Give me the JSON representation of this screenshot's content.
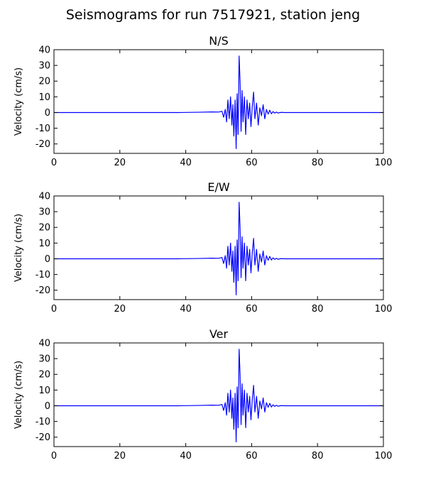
{
  "figure": {
    "title": "Seismograms for run 7517921, station jeng"
  },
  "chart_data": [
    {
      "type": "line",
      "title": "N/S",
      "xlabel": "",
      "ylabel": "Velocity (cm/s)",
      "xlim": [
        0,
        100
      ],
      "ylim": [
        -26,
        40
      ],
      "xticks": [
        0,
        20,
        40,
        60,
        80,
        100
      ],
      "yticks": [
        -20,
        -10,
        0,
        10,
        20,
        30,
        40
      ],
      "grid": false,
      "color": "#0000ff",
      "x": [
        0,
        38,
        44,
        48,
        50,
        51,
        51.5,
        52,
        52.4,
        52.8,
        53.2,
        53.6,
        54,
        54.3,
        54.6,
        55,
        55.3,
        55.6,
        55.9,
        56.2,
        56.5,
        56.8,
        57.1,
        57.4,
        57.8,
        58.2,
        58.6,
        59,
        59.4,
        59.8,
        60.2,
        60.6,
        61,
        61.5,
        62,
        62.5,
        63,
        63.5,
        64,
        64.5,
        65,
        65.5,
        66,
        66.5,
        67,
        67.5,
        68,
        69,
        70,
        75,
        80,
        90,
        100
      ],
      "y": [
        0,
        0,
        0.2,
        0.4,
        0.3,
        0.8,
        -3,
        2,
        -6,
        8,
        -4,
        10,
        -8,
        5,
        -15,
        8,
        -23,
        12,
        -14,
        36,
        20,
        -12,
        14,
        -6,
        10,
        -14,
        8,
        -4,
        6,
        -9,
        4,
        13,
        -4,
        6,
        -8,
        3,
        -2,
        5,
        -4,
        2,
        -1,
        1.5,
        -0.8,
        0.6,
        -0.4,
        0.3,
        -0.3,
        0.1,
        0,
        0,
        0,
        0,
        0
      ]
    },
    {
      "type": "line",
      "title": "E/W",
      "xlabel": "",
      "ylabel": "Velocity (cm/s)",
      "xlim": [
        0,
        100
      ],
      "ylim": [
        -26,
        40
      ],
      "xticks": [
        0,
        20,
        40,
        60,
        80,
        100
      ],
      "yticks": [
        -20,
        -10,
        0,
        10,
        20,
        30,
        40
      ],
      "grid": false,
      "color": "#0000ff",
      "x": [
        0,
        38,
        44,
        48,
        50,
        51,
        51.5,
        52,
        52.4,
        52.8,
        53.2,
        53.6,
        54,
        54.3,
        54.6,
        55,
        55.3,
        55.6,
        55.9,
        56.2,
        56.5,
        56.8,
        57.1,
        57.4,
        57.8,
        58.2,
        58.6,
        59,
        59.4,
        59.8,
        60.2,
        60.6,
        61,
        61.5,
        62,
        62.5,
        63,
        63.5,
        64,
        64.5,
        65,
        65.5,
        66,
        66.5,
        67,
        67.5,
        68,
        69,
        70,
        75,
        80,
        90,
        100
      ],
      "y": [
        0,
        0,
        0.2,
        0.4,
        0.3,
        0.8,
        -3,
        2,
        -6,
        8,
        -4,
        10,
        -8,
        5,
        -15,
        8,
        -23,
        12,
        -14,
        36,
        20,
        -12,
        14,
        -6,
        10,
        -14,
        8,
        -4,
        6,
        -9,
        4,
        13,
        -4,
        6,
        -8,
        3,
        -2,
        5,
        -4,
        2,
        -1,
        1.5,
        -0.8,
        0.6,
        -0.4,
        0.3,
        -0.3,
        0.1,
        0,
        0,
        0,
        0,
        0
      ]
    },
    {
      "type": "line",
      "title": "Ver",
      "xlabel": "",
      "ylabel": "Velocity (cm/s)",
      "xlim": [
        0,
        100
      ],
      "ylim": [
        -26,
        40
      ],
      "xticks": [
        0,
        20,
        40,
        60,
        80,
        100
      ],
      "yticks": [
        -20,
        -10,
        0,
        10,
        20,
        30,
        40
      ],
      "grid": false,
      "color": "#0000ff",
      "x": [
        0,
        38,
        44,
        48,
        50,
        51,
        51.5,
        52,
        52.4,
        52.8,
        53.2,
        53.6,
        54,
        54.3,
        54.6,
        55,
        55.3,
        55.6,
        55.9,
        56.2,
        56.5,
        56.8,
        57.1,
        57.4,
        57.8,
        58.2,
        58.6,
        59,
        59.4,
        59.8,
        60.2,
        60.6,
        61,
        61.5,
        62,
        62.5,
        63,
        63.5,
        64,
        64.5,
        65,
        65.5,
        66,
        66.5,
        67,
        67.5,
        68,
        69,
        70,
        75,
        80,
        90,
        100
      ],
      "y": [
        0,
        0,
        0.2,
        0.4,
        0.3,
        0.8,
        -3,
        2,
        -6,
        8,
        -4,
        10,
        -8,
        5,
        -15,
        8,
        -23,
        12,
        -14,
        36,
        20,
        -12,
        14,
        -6,
        10,
        -14,
        8,
        -4,
        6,
        -9,
        4,
        13,
        -4,
        6,
        -8,
        3,
        -2,
        5,
        -4,
        2,
        -1,
        1.5,
        -0.8,
        0.6,
        -0.4,
        0.3,
        -0.3,
        0.1,
        0,
        0,
        0,
        0,
        0
      ]
    }
  ]
}
